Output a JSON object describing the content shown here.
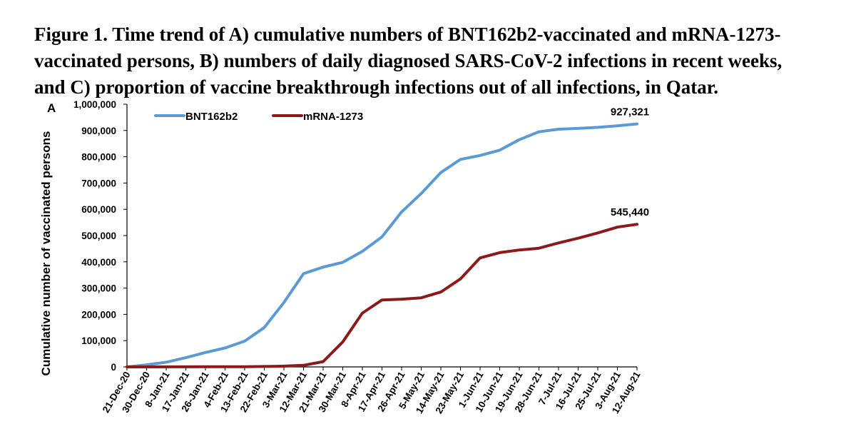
{
  "figure": {
    "caption": "Figure 1. Time trend of A) cumulative numbers of BNT162b2-vaccinated and mRNA-1273-\nvaccinated persons, B) numbers of daily diagnosed SARS-CoV-2 infections in recent weeks,\nand C) proportion of vaccine breakthrough infections out of all infections, in Qatar."
  },
  "chart_data": {
    "type": "line",
    "panel_label": "A",
    "title": "",
    "xlabel": "",
    "ylabel": "Cumulative number of vaccinated persons",
    "ylim": [
      0,
      1000000
    ],
    "yticks": [
      "0",
      "100,000",
      "200,000",
      "300,000",
      "400,000",
      "500,000",
      "600,000",
      "700,000",
      "800,000",
      "900,000",
      "1,000,000"
    ],
    "categories": [
      "21-Dec-20",
      "30-Dec-20",
      "8-Jan-21",
      "17-Jan-21",
      "26-Jan-21",
      "4-Feb-21",
      "13-Feb-21",
      "22-Feb-21",
      "3-Mar-21",
      "12-Mar-21",
      "21-Mar-21",
      "30-Mar-21",
      "8-Apr-21",
      "17-Apr-21",
      "26-Apr-21",
      "5-May-21",
      "14-May-21",
      "23-May-21",
      "1-Jun-21",
      "10-Jun-21",
      "19-Jun-21",
      "28-Jun-21",
      "7-Jul-21",
      "16-Jul-21",
      "25-Jul-21",
      "3-Aug-21",
      "12-Aug-21"
    ],
    "grid": false,
    "legend_position": "top-left",
    "series": [
      {
        "name": "BNT162b2",
        "color": "#5B9BD5",
        "end_label": "927,321",
        "values": [
          0,
          8000,
          18000,
          35000,
          55000,
          72000,
          98000,
          150000,
          245000,
          355000,
          380000,
          398000,
          440000,
          495000,
          590000,
          660000,
          740000,
          790000,
          805000,
          825000,
          865000,
          895000,
          905000,
          908000,
          912000,
          918000,
          925000
        ],
        "final_value": 927321
      },
      {
        "name": "mRNA-1273",
        "color": "#8B1A1A",
        "end_label": "545,440",
        "values": [
          0,
          100,
          200,
          300,
          500,
          700,
          900,
          1500,
          3000,
          6000,
          20000,
          95000,
          205000,
          255000,
          258000,
          263000,
          285000,
          335000,
          415000,
          435000,
          445000,
          452000,
          472000,
          490000,
          510000,
          532000,
          543000
        ],
        "final_value": 545440
      }
    ]
  }
}
